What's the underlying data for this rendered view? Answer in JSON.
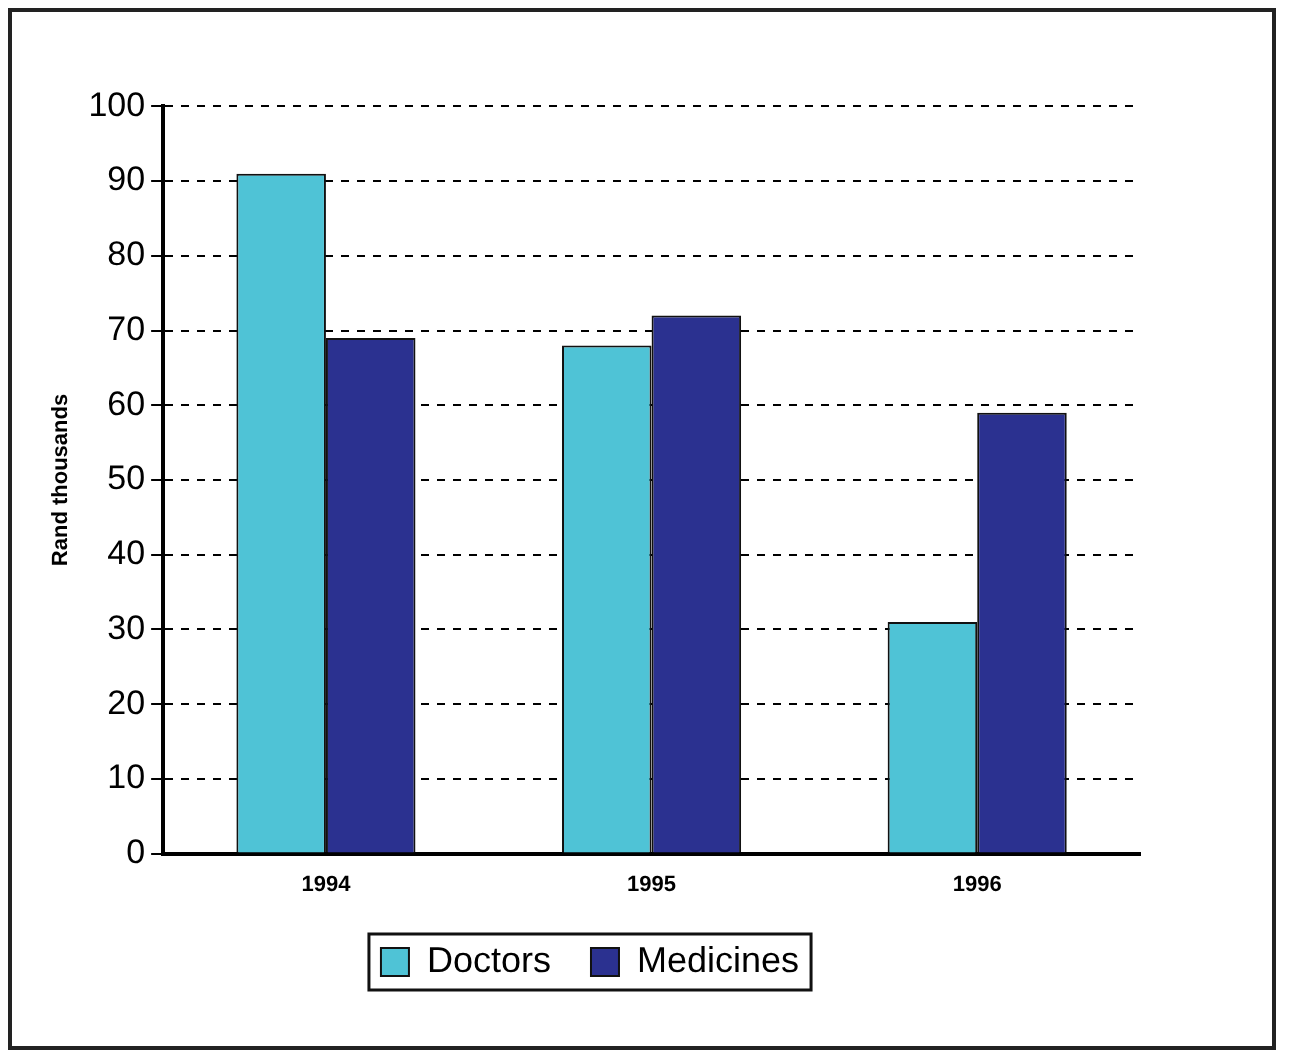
{
  "chart_data": {
    "type": "bar",
    "ylabel": "Rand thousands",
    "categories": [
      "1994",
      "1995",
      "1996"
    ],
    "series": [
      {
        "name": "Doctors",
        "color": "#4fc3d6",
        "values": [
          91,
          68,
          31
        ]
      },
      {
        "name": "Medicines",
        "color": "#2b3190",
        "values": [
          69,
          72,
          59
        ]
      }
    ],
    "ylim": [
      0,
      100
    ],
    "yticks": [
      0,
      10,
      20,
      30,
      40,
      50,
      60,
      70,
      80,
      90,
      100
    ],
    "grid": "y",
    "line_style": "dashed",
    "legend": "bottom"
  }
}
